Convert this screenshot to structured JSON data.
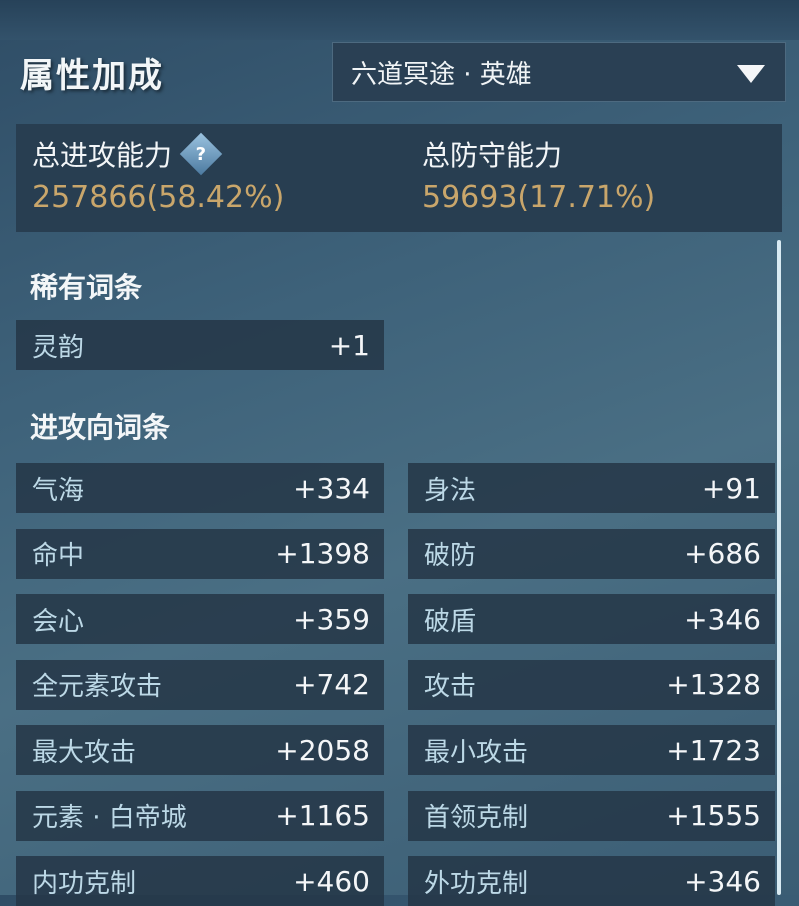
{
  "header": {
    "title": "属性加成",
    "dropdown_value": "六道冥途 · 英雄"
  },
  "summary": {
    "attack": {
      "label": "总进攻能力",
      "value": "257866(58.42%)"
    },
    "defense": {
      "label": "总防守能力",
      "value": "59693(17.71%)"
    },
    "help_icon": "?"
  },
  "rare": {
    "title": "稀有词条",
    "items": [
      {
        "label": "灵韵",
        "value": "+1"
      }
    ]
  },
  "offense": {
    "title": "进攻向词条",
    "items": [
      {
        "label": "气海",
        "value": "+334"
      },
      {
        "label": "身法",
        "value": "+91"
      },
      {
        "label": "命中",
        "value": "+1398"
      },
      {
        "label": "破防",
        "value": "+686"
      },
      {
        "label": "会心",
        "value": "+359"
      },
      {
        "label": "破盾",
        "value": "+346"
      },
      {
        "label": "全元素攻击",
        "value": "+742"
      },
      {
        "label": "攻击",
        "value": "+1328"
      },
      {
        "label": "最大攻击",
        "value": "+2058"
      },
      {
        "label": "最小攻击",
        "value": "+1723"
      },
      {
        "label": "元素 · 白帝城",
        "value": "+1165"
      },
      {
        "label": "首领克制",
        "value": "+1555"
      },
      {
        "label": "内功克制",
        "value": "+460"
      },
      {
        "label": "外功克制",
        "value": "+346"
      }
    ]
  }
}
